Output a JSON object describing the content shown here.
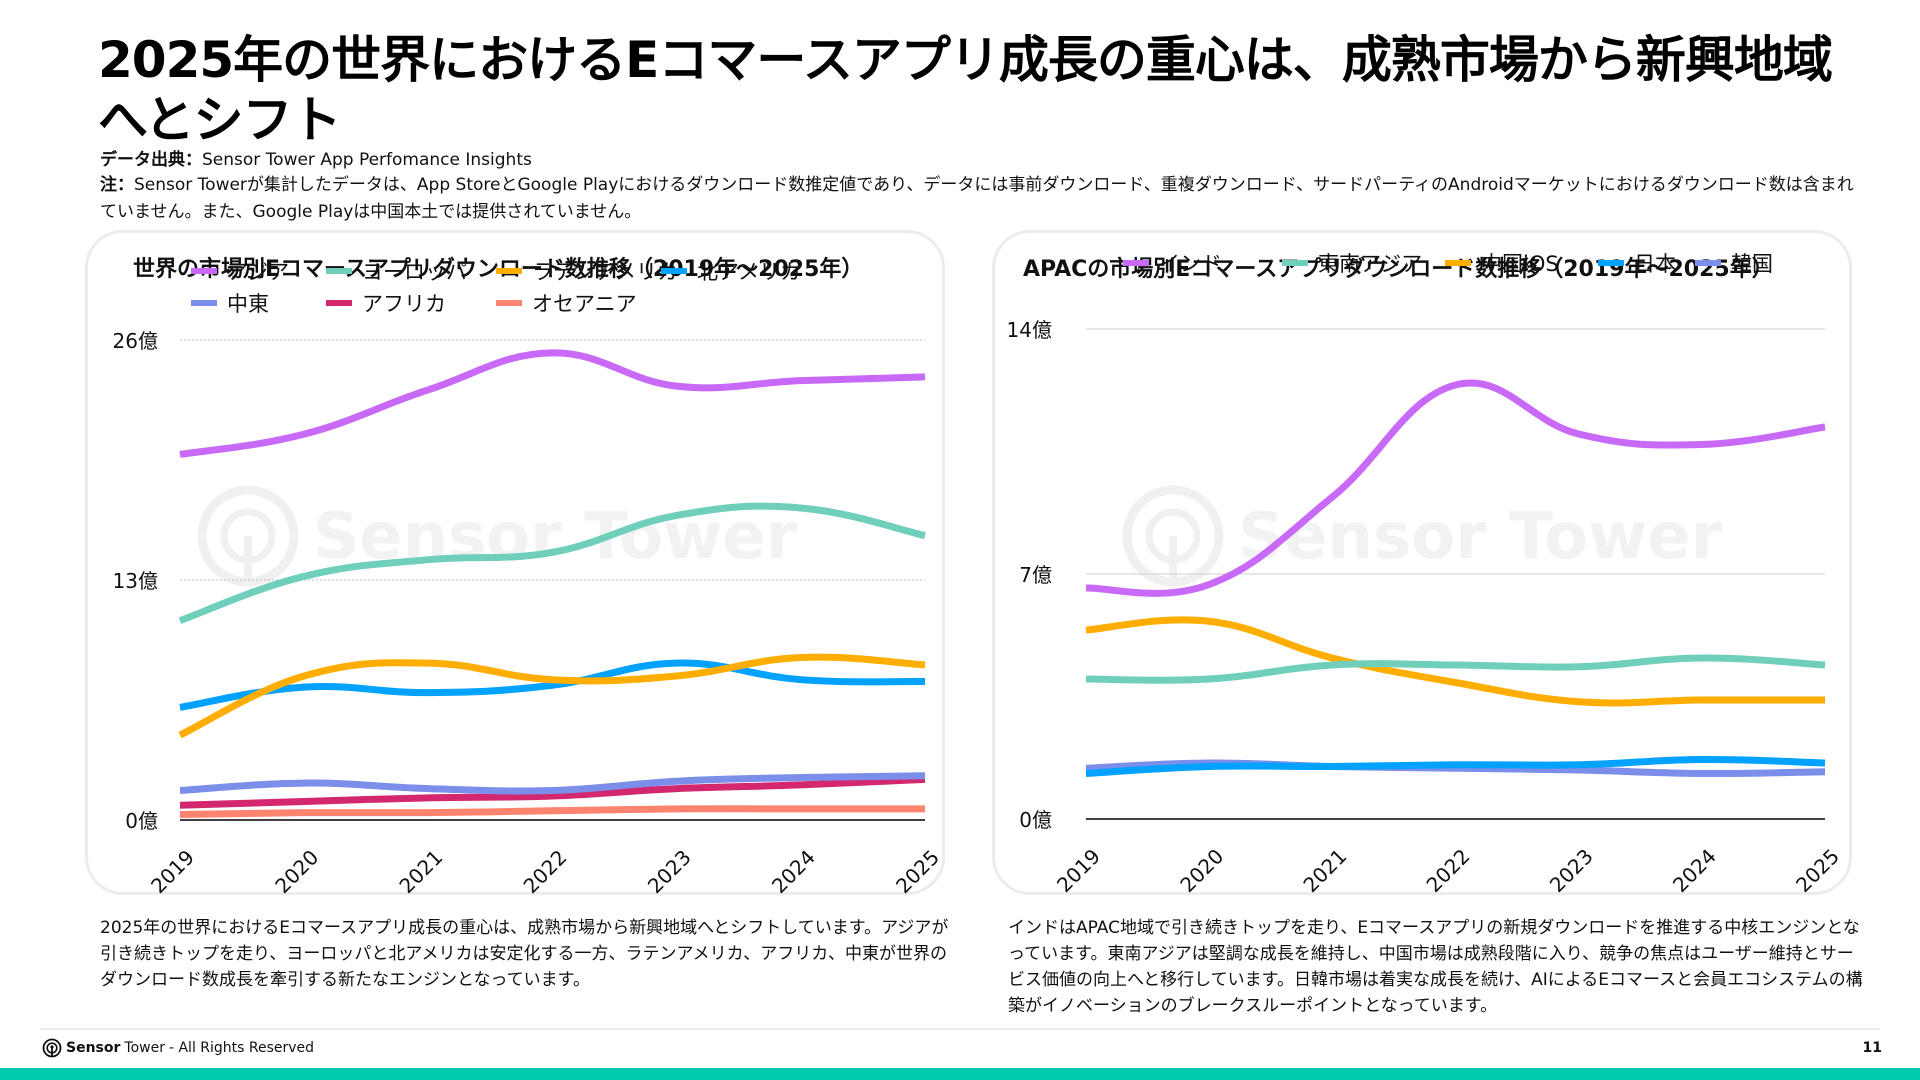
{
  "header": {
    "title": "2025年の世界におけるEコマースアプリ成長の重心は、成熟市場から新興地域へとシフト",
    "source_label": "データ出典：",
    "source_value": "Sensor Tower App Perfomance Insights",
    "note_label": "注：",
    "note_value": "Sensor Towerが集計したデータは、App StoreとGoogle Playにおけるダウンロード数推定値であり、データには事前ダウンロード、重複ダウンロード、サードパーティのAndroidマーケットにおけるダウンロード数は含まれていません。また、Google Playは中国本土では提供されていません。"
  },
  "watermark": "Sensor Tower",
  "chart_data": [
    {
      "type": "line",
      "title": "世界の市場別Eコマースアプリダウンロード数推移（2019年～2025年）",
      "xlabel": "",
      "ylabel": "",
      "x": [
        "2019",
        "2020",
        "2021",
        "2022",
        "2023",
        "2024",
        "2025"
      ],
      "ylim": [
        0,
        26
      ],
      "yticks": [
        0,
        13,
        26
      ],
      "ytick_labels": [
        "0億",
        "13億",
        "26億"
      ],
      "unit": "億",
      "grid": true,
      "legend_position": "top",
      "series": [
        {
          "name": "アジア",
          "color": "#c86af7",
          "values": [
            19.8,
            20.9,
            23.3,
            25.3,
            23.5,
            23.8,
            24.0
          ]
        },
        {
          "name": "ヨーロッパ",
          "color": "#6fcfbb",
          "values": [
            10.8,
            13.2,
            14.1,
            14.5,
            16.5,
            16.9,
            15.4
          ]
        },
        {
          "name": "ラテンアメリカ",
          "color": "#ffae00",
          "values": [
            4.6,
            7.8,
            8.5,
            7.6,
            7.8,
            8.8,
            8.4
          ]
        },
        {
          "name": "北アメリカ",
          "color": "#00a2ff",
          "values": [
            6.1,
            7.2,
            6.9,
            7.3,
            8.5,
            7.6,
            7.5
          ]
        },
        {
          "name": "中東",
          "color": "#7b8ee9",
          "values": [
            1.6,
            2.0,
            1.7,
            1.6,
            2.1,
            2.3,
            2.4
          ]
        },
        {
          "name": "アフリカ",
          "color": "#d3286f",
          "values": [
            0.8,
            1.0,
            1.2,
            1.3,
            1.7,
            1.9,
            2.2
          ]
        },
        {
          "name": "オセアニア",
          "color": "#ff8470",
          "values": [
            0.3,
            0.4,
            0.4,
            0.5,
            0.6,
            0.6,
            0.6
          ]
        }
      ]
    },
    {
      "type": "line",
      "title": "APACの市場別Eコマースアプリダウンロード数推移（2019年～2025年）",
      "xlabel": "",
      "ylabel": "",
      "x": [
        "2019",
        "2020",
        "2021",
        "2022",
        "2023",
        "2024",
        "2025"
      ],
      "ylim": [
        0,
        14
      ],
      "yticks": [
        0,
        7,
        14
      ],
      "ytick_labels": [
        "0億",
        "7億",
        "14億"
      ],
      "unit": "億",
      "grid": true,
      "legend_position": "top",
      "series": [
        {
          "name": "インド",
          "color": "#c86af7",
          "values": [
            6.6,
            6.7,
            9.2,
            12.4,
            11.0,
            10.7,
            11.2
          ]
        },
        {
          "name": "東南アジア",
          "color": "#6fcfbb",
          "values": [
            4.0,
            4.0,
            4.4,
            4.4,
            4.35,
            4.6,
            4.4
          ]
        },
        {
          "name": "中国iOS",
          "color": "#ffae00",
          "values": [
            5.4,
            5.65,
            4.6,
            3.9,
            3.35,
            3.4,
            3.4
          ]
        },
        {
          "name": "日本",
          "color": "#00a2ff",
          "values": [
            1.3,
            1.5,
            1.5,
            1.55,
            1.55,
            1.7,
            1.6
          ]
        },
        {
          "name": "韓国",
          "color": "#7b8ee9",
          "values": [
            1.45,
            1.6,
            1.5,
            1.45,
            1.4,
            1.3,
            1.35
          ]
        }
      ]
    }
  ],
  "descriptions": {
    "left": "2025年の世界におけるEコマースアプリ成長の重心は、成熟市場から新興地域へとシフトしています。アジアが引き続きトップを走り、ヨーロッパと北アメリカは安定化する一方、ラテンアメリカ、アフリカ、中東が世界のダウンロード数成長を牽引する新たなエンジンとなっています。",
    "right": "インドはAPAC地域で引き続きトップを走り、Eコマースアプリの新規ダウンロードを推進する中核エンジンとなっています。東南アジアは堅調な成長を維持し、中国市場は成熟段階に入り、競争の焦点はユーザー維持とサービス価値の向上へと移行しています。日韓市場は着実な成長を続け、AIによるEコマースと会員エコシステムの構築がイノベーションのブレークスルーポイントとなっています。"
  },
  "footer": {
    "brand_strong": "Sensor",
    "brand_light": "Tower",
    "rights": " - All Rights Reserved",
    "page_number": "11",
    "accent_color": "#00c9b0"
  }
}
